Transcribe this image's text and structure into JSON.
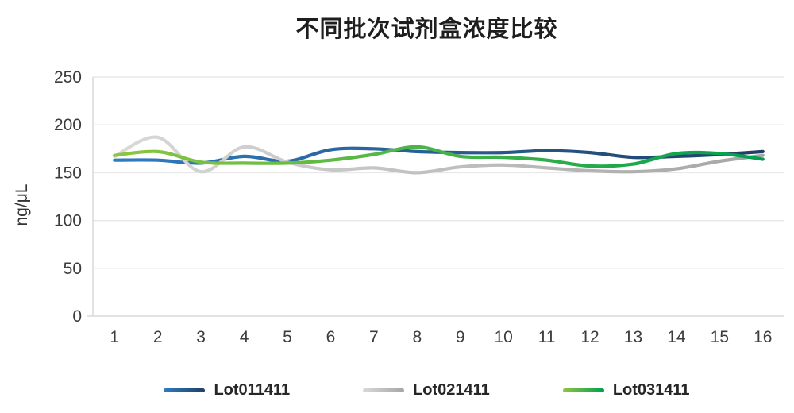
{
  "title": "不同批次试剂盒浓度比较",
  "chart_data": {
    "type": "line",
    "title": "不同批次试剂盒浓度比较",
    "xlabel": "",
    "ylabel": "ng/μL",
    "x": [
      1,
      2,
      3,
      4,
      5,
      6,
      7,
      8,
      9,
      10,
      11,
      12,
      13,
      14,
      15,
      16
    ],
    "series": [
      {
        "name": "Lot011411",
        "values": [
          163,
          163,
          160,
          167,
          162,
          174,
          175,
          172,
          171,
          171,
          173,
          171,
          166,
          167,
          169,
          172
        ],
        "color_start": "#2f7cc0",
        "color_end": "#203f66"
      },
      {
        "name": "Lot021411",
        "values": [
          167,
          187,
          151,
          177,
          161,
          153,
          155,
          150,
          156,
          158,
          155,
          152,
          151,
          154,
          162,
          168
        ],
        "color_start": "#d9d9d9",
        "color_end": "#a6a6a6"
      },
      {
        "name": "Lot031411",
        "values": [
          168,
          172,
          161,
          160,
          160,
          163,
          169,
          177,
          167,
          166,
          163,
          157,
          159,
          170,
          170,
          164
        ],
        "color_start": "#8dc63f",
        "color_end": "#00a04f"
      }
    ],
    "ylim": [
      0,
      250
    ],
    "yticks": [
      0,
      50,
      100,
      150,
      200,
      250
    ],
    "grid": "horizontal",
    "gridline_color": "#e8e8e8",
    "axis_line_color": "#d9d9d9",
    "line_style": "smooth",
    "legend_position": "bottom"
  }
}
